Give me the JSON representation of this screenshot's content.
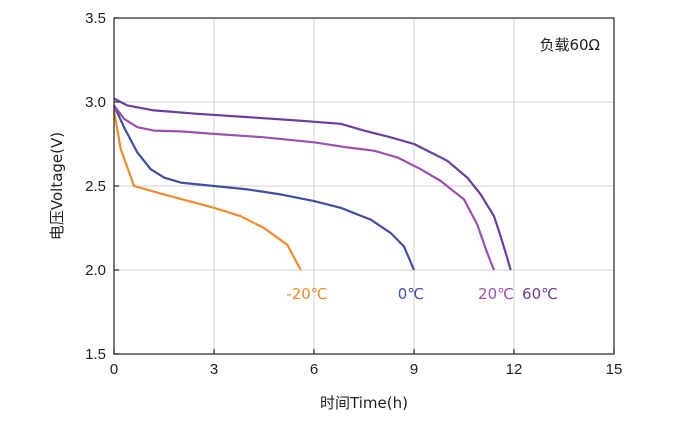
{
  "chart_data": {
    "type": "line",
    "xlabel": "时间Time(h)",
    "ylabel": "电压Voltage(V)",
    "xlim": [
      0,
      15
    ],
    "ylim": [
      1.5,
      3.5
    ],
    "xticks": [
      0,
      3,
      6,
      9,
      12,
      15
    ],
    "yticks": [
      1.5,
      2.0,
      2.5,
      3.0,
      3.5
    ],
    "xtick_labels": [
      "0",
      "3",
      "6",
      "9",
      "12",
      "15"
    ],
    "ytick_labels": [
      "1.5",
      "2.0",
      "2.5",
      "3.0",
      "3.5"
    ],
    "grid": true,
    "annotation": "负载60Ω",
    "series": [
      {
        "name": "-20℃",
        "color": "#f08a2c",
        "points": [
          [
            0,
            2.95
          ],
          [
            0.2,
            2.72
          ],
          [
            0.6,
            2.5
          ],
          [
            1.5,
            2.45
          ],
          [
            3,
            2.37
          ],
          [
            3.8,
            2.32
          ],
          [
            4.5,
            2.25
          ],
          [
            5.2,
            2.15
          ],
          [
            5.6,
            2.0
          ]
        ]
      },
      {
        "name": "0℃",
        "color": "#3f4ea0",
        "points": [
          [
            0,
            2.98
          ],
          [
            0.3,
            2.85
          ],
          [
            0.7,
            2.7
          ],
          [
            1.1,
            2.6
          ],
          [
            1.5,
            2.55
          ],
          [
            2,
            2.52
          ],
          [
            3,
            2.5
          ],
          [
            4,
            2.48
          ],
          [
            5,
            2.45
          ],
          [
            6,
            2.41
          ],
          [
            6.8,
            2.37
          ],
          [
            7.7,
            2.3
          ],
          [
            8.3,
            2.22
          ],
          [
            8.7,
            2.14
          ],
          [
            9.0,
            2.0
          ]
        ]
      },
      {
        "name": "20℃",
        "color": "#9b4fb0",
        "points": [
          [
            0,
            2.98
          ],
          [
            0.3,
            2.9
          ],
          [
            0.7,
            2.85
          ],
          [
            1.2,
            2.83
          ],
          [
            2,
            2.825
          ],
          [
            3,
            2.81
          ],
          [
            4.5,
            2.79
          ],
          [
            6,
            2.76
          ],
          [
            7,
            2.73
          ],
          [
            7.8,
            2.71
          ],
          [
            8.5,
            2.67
          ],
          [
            9.2,
            2.6
          ],
          [
            9.8,
            2.53
          ],
          [
            10.5,
            2.42
          ],
          [
            10.9,
            2.27
          ],
          [
            11.2,
            2.1
          ],
          [
            11.4,
            2.0
          ]
        ]
      },
      {
        "name": "60℃",
        "color": "#6a3e9c",
        "points": [
          [
            0,
            3.02
          ],
          [
            0.4,
            2.98
          ],
          [
            1.2,
            2.95
          ],
          [
            2.5,
            2.93
          ],
          [
            4,
            2.91
          ],
          [
            5.5,
            2.89
          ],
          [
            6.8,
            2.87
          ],
          [
            7.5,
            2.83
          ],
          [
            8.3,
            2.79
          ],
          [
            9,
            2.75
          ],
          [
            9.5,
            2.7
          ],
          [
            10,
            2.65
          ],
          [
            10.6,
            2.55
          ],
          [
            11,
            2.45
          ],
          [
            11.4,
            2.32
          ],
          [
            11.6,
            2.2
          ],
          [
            11.8,
            2.07
          ],
          [
            11.9,
            2.0
          ]
        ]
      }
    ],
    "series_labels": [
      "-20℃",
      "0℃",
      "20℃",
      "60℃"
    ]
  }
}
